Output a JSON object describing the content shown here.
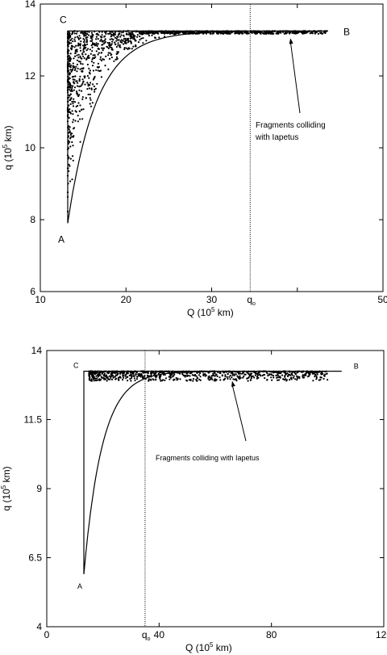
{
  "chart_data": [
    {
      "type": "scatter",
      "title": "",
      "xlabel": "Q (10",
      "xlabel_sup": "5",
      "xlabel_unit": " km)",
      "ylabel": "q (10",
      "ylabel_sup": "5",
      "ylabel_unit": " km)",
      "xlim": [
        10,
        50
      ],
      "ylim": [
        6,
        14
      ],
      "xticks": [
        10,
        20,
        30,
        40,
        50
      ],
      "yticks": [
        6,
        8,
        10,
        12,
        14
      ],
      "xtick_labels": [
        "10",
        "20",
        "30",
        "",
        "50"
      ],
      "vline": {
        "x": 34.5,
        "label": "q",
        "label_sub": "o",
        "style": "dotted"
      },
      "boundary": {
        "q_top": 13.25,
        "Q_left": 13.2,
        "A": [
          13.2,
          7.9
        ],
        "B": [
          43.5,
          13.25
        ],
        "C": [
          13.2,
          13.25
        ]
      },
      "points_label": {
        "A": "A",
        "B": "B",
        "C": "C"
      },
      "annotation": {
        "lines": [
          "Fragments colliding",
          "with Iapetus"
        ],
        "arrow_to": [
          39.2,
          13.05
        ]
      },
      "scatter": {
        "n": 1300,
        "x_range": [
          13.2,
          43.5
        ],
        "y_range": [
          7.9,
          13.25
        ]
      }
    },
    {
      "type": "scatter",
      "title": "",
      "xlabel": "Q  (10",
      "xlabel_sup": "5",
      "xlabel_unit": " km)",
      "ylabel": "q (10",
      "ylabel_sup": "5",
      "ylabel_unit": " km)",
      "xlim": [
        0,
        120
      ],
      "ylim": [
        4,
        14
      ],
      "xticks": [
        0,
        40,
        80,
        120
      ],
      "yticks": [
        4,
        6.5,
        9,
        11.5,
        14
      ],
      "xtick_labels": [
        "0",
        "40",
        "80",
        "120"
      ],
      "ytick_labels": [
        "4",
        "6.5",
        "9",
        "11.5",
        "14"
      ],
      "vline": {
        "x": 35,
        "label": "q",
        "label_sub": "o",
        "style": "dotted"
      },
      "boundary": {
        "q_top": 13.25,
        "Q_left": 13.2,
        "A": [
          13.2,
          5.9
        ],
        "B": [
          105,
          13.25
        ],
        "C": [
          13.2,
          13.25
        ]
      },
      "points_label": {
        "A": "A",
        "B": "B",
        "C": "C"
      },
      "annotation": {
        "lines": [
          "Fragments colliding with Iapetus"
        ],
        "arrow_to": [
          66,
          12.9
        ]
      },
      "scatter": {
        "n": 900,
        "x_range": [
          15,
          100
        ],
        "y_range": [
          12.9,
          13.25
        ]
      }
    }
  ]
}
